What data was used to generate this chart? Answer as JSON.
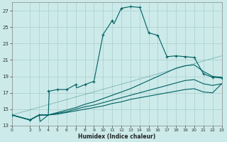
{
  "xlabel": "Humidex (Indice chaleur)",
  "bg_color": "#cceaea",
  "grid_color": "#aacccc",
  "line_color": "#006060",
  "xlim": [
    0,
    23
  ],
  "ylim": [
    13,
    28
  ],
  "yticks": [
    13,
    15,
    17,
    19,
    21,
    23,
    25,
    27
  ],
  "xticks": [
    0,
    2,
    3,
    4,
    5,
    6,
    7,
    8,
    9,
    10,
    11,
    12,
    13,
    14,
    15,
    16,
    17,
    18,
    19,
    20,
    21,
    22,
    23
  ],
  "line1_x": [
    0,
    2,
    3,
    3.1,
    4,
    4.1,
    5,
    6,
    7,
    7.1,
    8,
    9,
    10,
    11,
    11.2,
    12,
    13,
    14,
    14.1,
    15,
    16,
    17,
    18,
    19,
    20,
    21,
    22,
    23
  ],
  "line1_y": [
    14.3,
    13.7,
    14.3,
    13.5,
    14.3,
    17.2,
    17.4,
    17.4,
    18.0,
    17.6,
    18.0,
    18.4,
    24.1,
    25.8,
    25.4,
    27.3,
    27.5,
    27.4,
    27.2,
    24.3,
    24.0,
    21.4,
    21.5,
    21.4,
    21.3,
    19.3,
    18.9,
    18.8
  ],
  "markers1_x": [
    0,
    2,
    3,
    4,
    5,
    6,
    7,
    8,
    9,
    10,
    11,
    12,
    13,
    14,
    15,
    16,
    17,
    18,
    19,
    20,
    21,
    22,
    23
  ],
  "markers1_y": [
    14.3,
    13.7,
    14.3,
    17.2,
    17.4,
    17.4,
    18.0,
    18.0,
    18.4,
    24.1,
    25.8,
    27.3,
    27.5,
    27.4,
    24.3,
    24.0,
    21.4,
    21.5,
    21.4,
    21.3,
    19.3,
    18.9,
    18.8
  ],
  "line2_x": [
    0,
    2,
    3,
    4,
    5,
    6,
    7,
    8,
    9,
    10,
    11,
    12,
    13,
    14,
    15,
    16,
    17,
    18,
    19,
    20,
    21,
    22,
    23
  ],
  "line2_y": [
    14.3,
    13.7,
    14.3,
    14.3,
    14.6,
    14.9,
    15.2,
    15.6,
    15.9,
    16.3,
    16.7,
    17.1,
    17.5,
    18.0,
    18.5,
    19.0,
    19.5,
    20.0,
    20.3,
    20.4,
    19.6,
    19.0,
    18.9
  ],
  "line3_x": [
    0,
    2,
    3,
    4,
    5,
    6,
    7,
    8,
    9,
    10,
    11,
    12,
    13,
    14,
    15,
    16,
    17,
    18,
    19,
    20,
    21,
    22,
    23
  ],
  "line3_y": [
    14.3,
    13.7,
    14.3,
    14.3,
    14.5,
    14.7,
    15.0,
    15.3,
    15.5,
    15.8,
    16.1,
    16.4,
    16.7,
    17.0,
    17.3,
    17.6,
    17.9,
    18.2,
    18.5,
    18.6,
    18.1,
    17.9,
    18.1
  ],
  "line4_x": [
    0,
    2,
    3,
    4,
    5,
    6,
    7,
    8,
    9,
    10,
    11,
    12,
    13,
    14,
    15,
    16,
    17,
    18,
    19,
    20,
    21,
    22,
    23
  ],
  "line4_y": [
    14.3,
    13.7,
    14.3,
    14.3,
    14.4,
    14.6,
    14.8,
    15.0,
    15.2,
    15.4,
    15.7,
    15.9,
    16.2,
    16.4,
    16.6,
    16.8,
    17.0,
    17.2,
    17.4,
    17.5,
    17.1,
    17.0,
    18.1
  ]
}
